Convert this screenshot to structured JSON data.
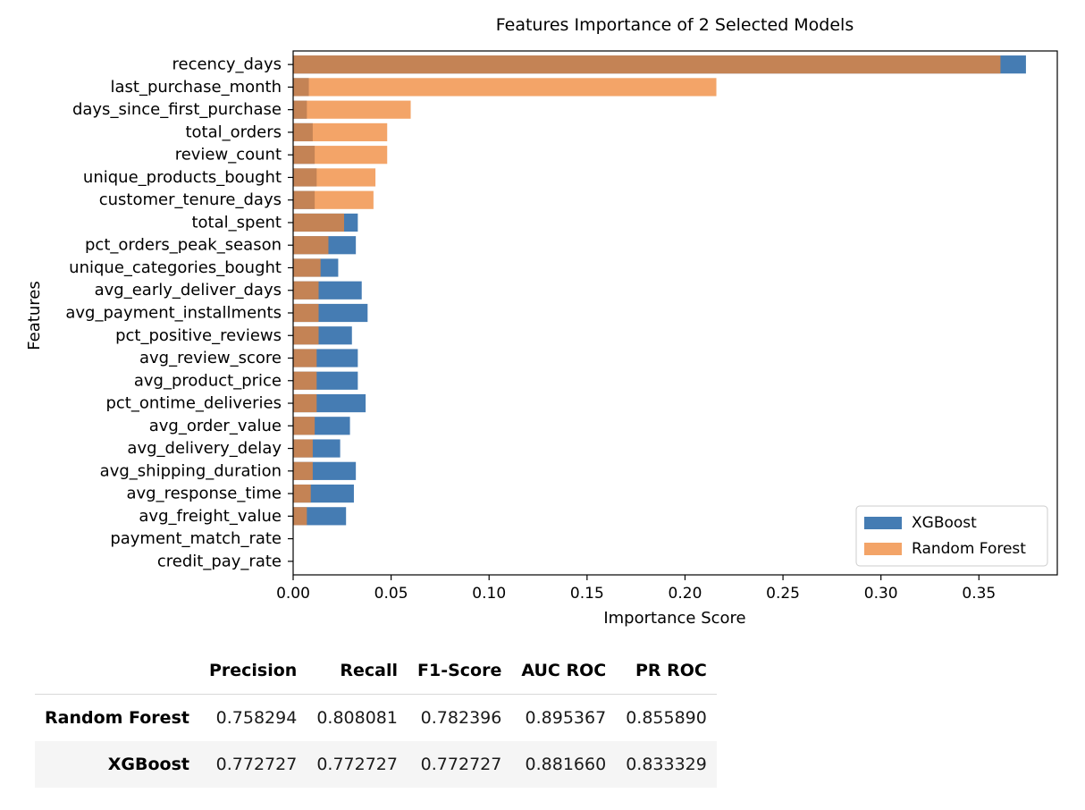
{
  "chart_data": {
    "type": "bar",
    "orientation": "horizontal",
    "title": "Features Importance of 2 Selected Models",
    "xlabel": "Importance Score",
    "ylabel": "Features",
    "xlim": [
      0,
      0.39
    ],
    "xticks": [
      "0.00",
      "0.05",
      "0.10",
      "0.15",
      "0.20",
      "0.25",
      "0.30",
      "0.35"
    ],
    "grid": false,
    "legend_position": "lower-right",
    "categories": [
      "recency_days",
      "last_purchase_month",
      "days_since_first_purchase",
      "total_orders",
      "review_count",
      "unique_products_bought",
      "customer_tenure_days",
      "total_spent",
      "pct_orders_peak_season",
      "unique_categories_bought",
      "avg_early_deliver_days",
      "avg_payment_installments",
      "pct_positive_reviews",
      "avg_review_score",
      "avg_product_price",
      "pct_ontime_deliveries",
      "avg_order_value",
      "avg_delivery_delay",
      "avg_shipping_duration",
      "avg_response_time",
      "avg_freight_value",
      "payment_match_rate",
      "credit_pay_rate"
    ],
    "series": [
      {
        "name": "XGBoost",
        "color": "#3b75af",
        "values": [
          0.374,
          0.008,
          0.007,
          0.01,
          0.011,
          0.012,
          0.011,
          0.033,
          0.032,
          0.023,
          0.035,
          0.038,
          0.03,
          0.033,
          0.033,
          0.037,
          0.029,
          0.024,
          0.032,
          0.031,
          0.027,
          0.0,
          0.0
        ]
      },
      {
        "name": "Random Forest",
        "color": "#ef8636",
        "values": [
          0.361,
          0.216,
          0.06,
          0.048,
          0.048,
          0.042,
          0.041,
          0.026,
          0.018,
          0.014,
          0.013,
          0.013,
          0.013,
          0.012,
          0.012,
          0.012,
          0.011,
          0.01,
          0.01,
          0.009,
          0.007,
          0.0,
          0.0
        ]
      }
    ]
  },
  "table": {
    "columns": [
      "Precision",
      "Recall",
      "F1-Score",
      "AUC ROC",
      "PR ROC"
    ],
    "rows": [
      {
        "label": "Random Forest",
        "cells": [
          "0.758294",
          "0.808081",
          "0.782396",
          "0.895367",
          "0.855890"
        ]
      },
      {
        "label": "XGBoost",
        "cells": [
          "0.772727",
          "0.772727",
          "0.772727",
          "0.881660",
          "0.833329"
        ]
      }
    ]
  }
}
